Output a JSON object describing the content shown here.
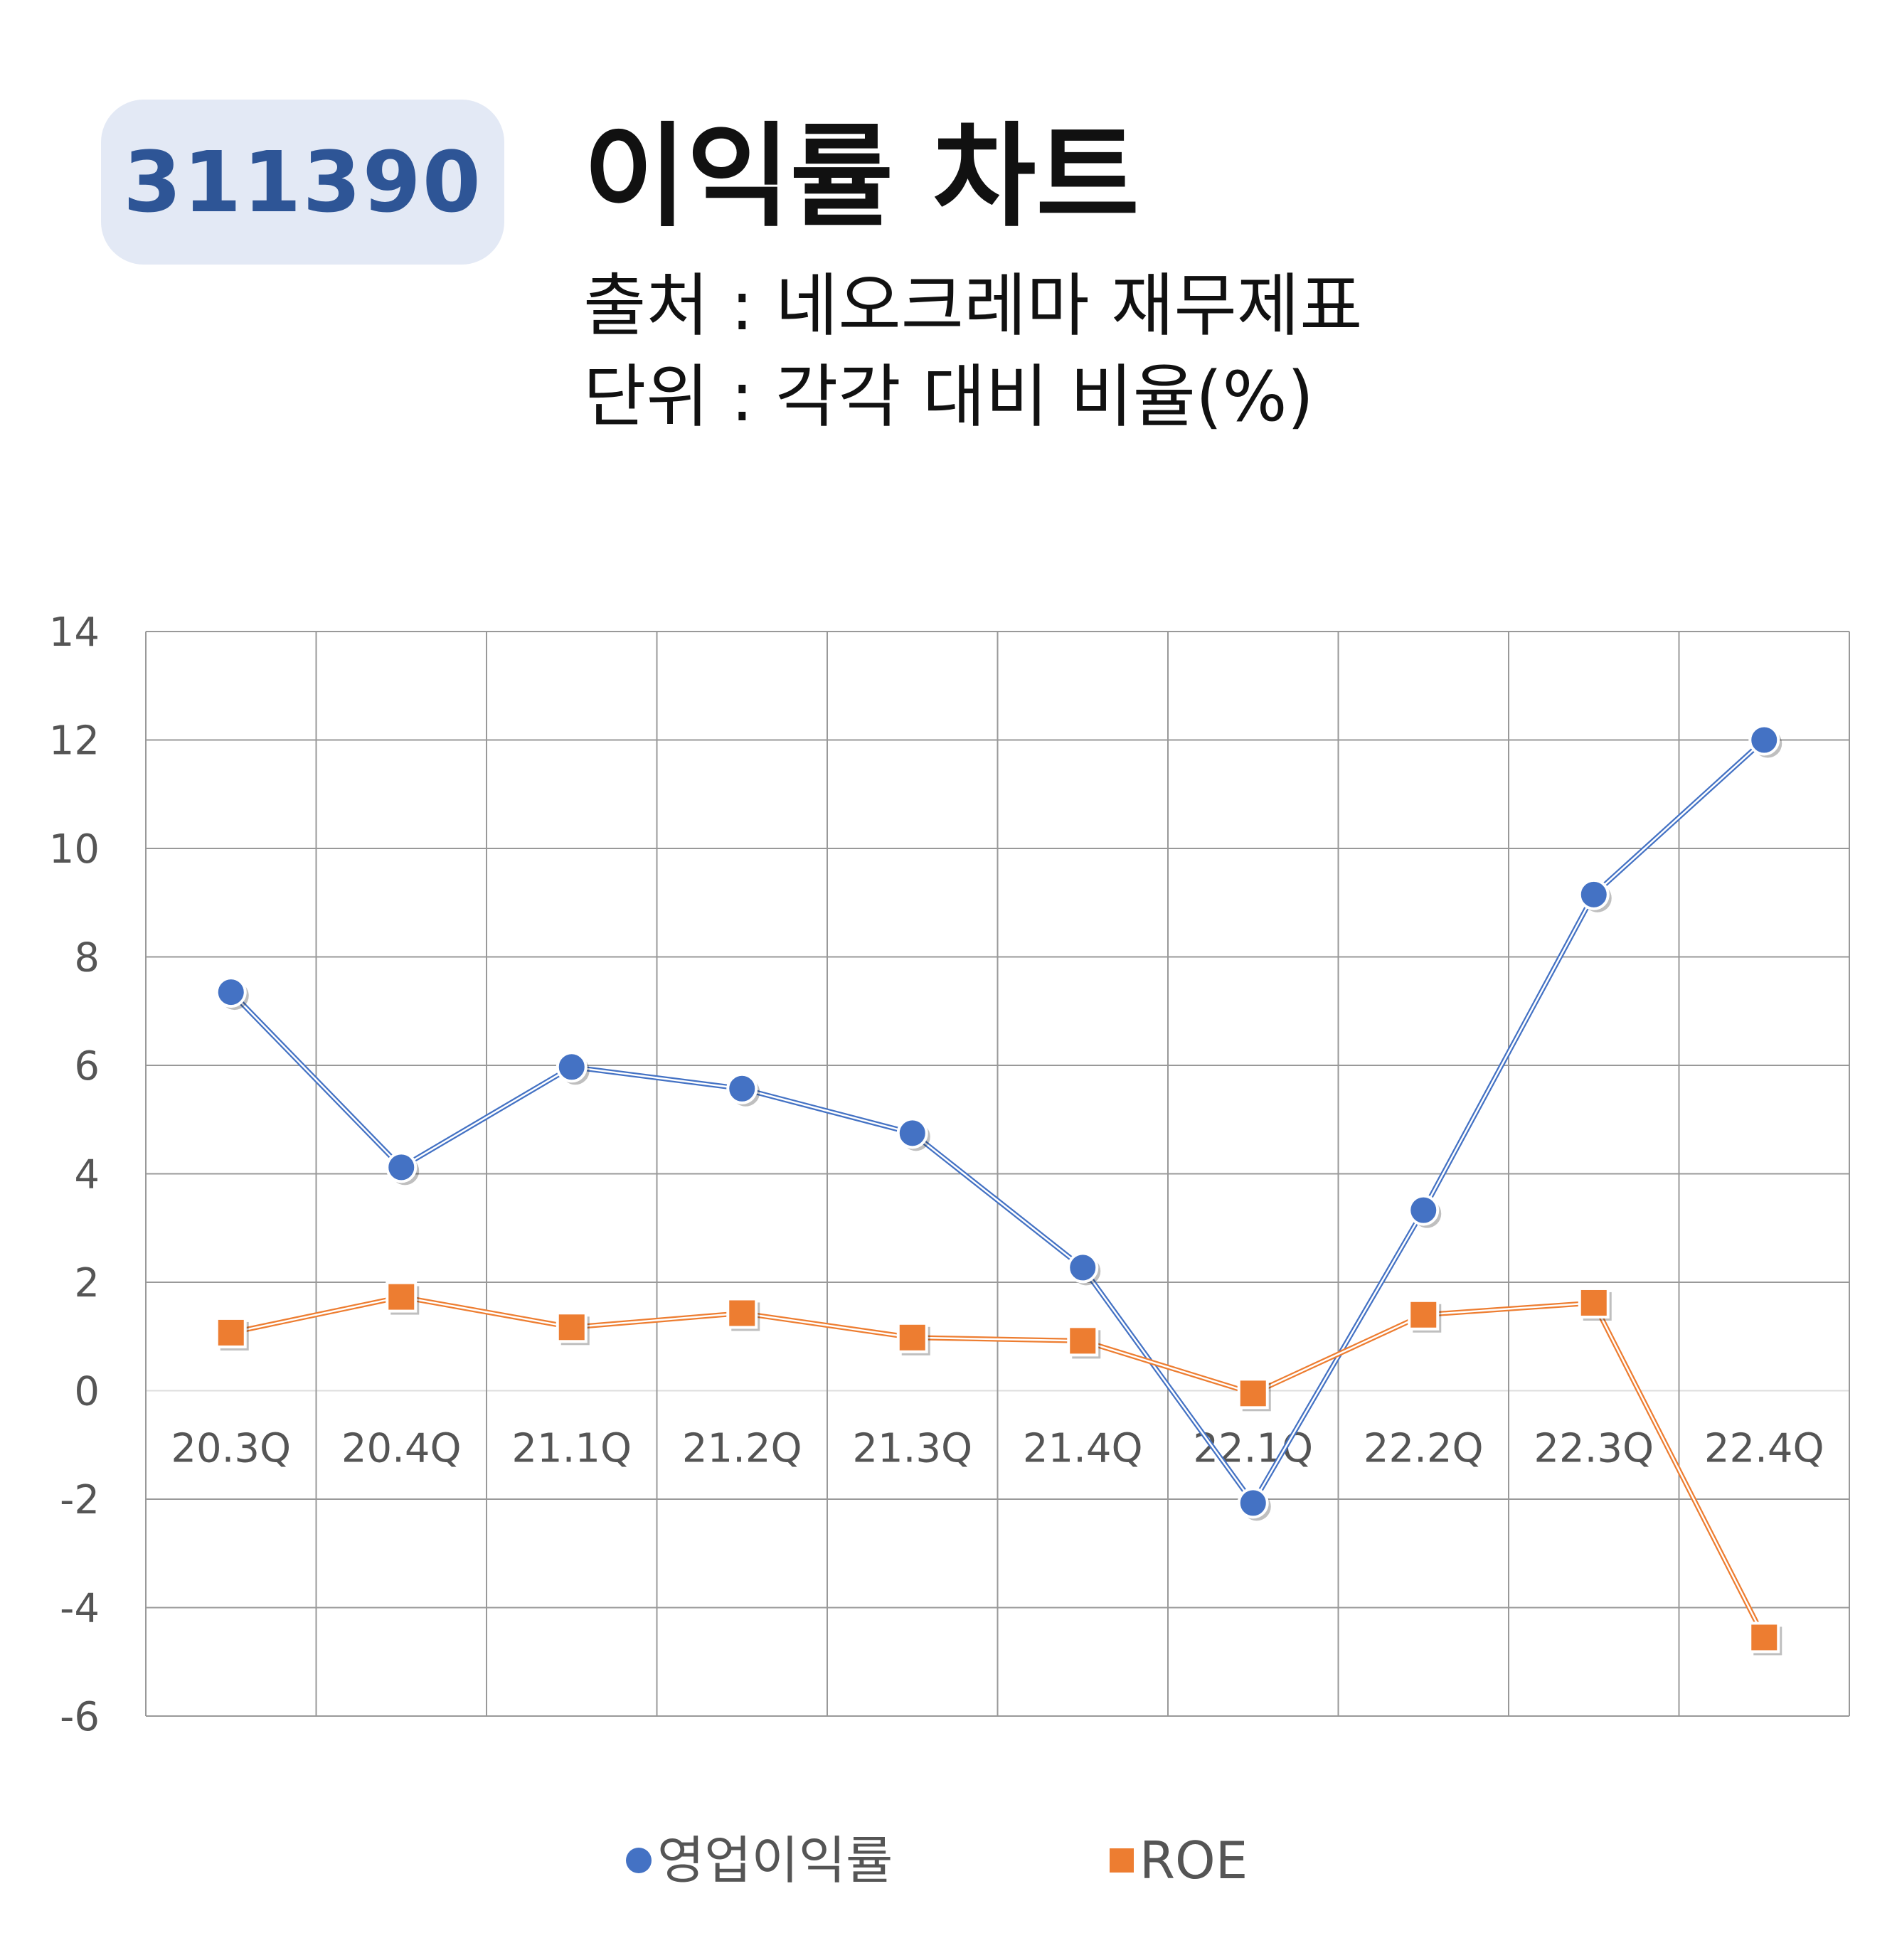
{
  "header": {
    "ticker": "311390",
    "title": "이익률 차트",
    "source": "출처 : 네오크레마 재무제표",
    "unit": "단위 : 각각 대비 비율(%)"
  },
  "colors": {
    "badge_bg": "#e3e9f5",
    "badge_text": "#2e5596",
    "series1": "#4472c4",
    "series2": "#ed7d31",
    "grid": "#999999"
  },
  "chart_data": {
    "type": "line",
    "categories": [
      "20.3Q",
      "20.4Q",
      "21.1Q",
      "21.2Q",
      "21.3Q",
      "21.4Q",
      "22.1Q",
      "22.2Q",
      "22.3Q",
      "22.4Q"
    ],
    "series": [
      {
        "name": "영업이익률",
        "color": "#4472c4",
        "marker": "circle",
        "values": [
          7.35,
          4.12,
          5.97,
          5.57,
          4.75,
          2.27,
          -2.07,
          3.33,
          9.15,
          12.0
        ]
      },
      {
        "name": "ROE",
        "color": "#ed7d31",
        "marker": "square",
        "values": [
          1.07,
          1.73,
          1.17,
          1.43,
          0.98,
          0.92,
          -0.05,
          1.4,
          1.62,
          -4.55
        ]
      }
    ],
    "ylim": [
      -6,
      14
    ],
    "yticks": [
      14,
      12,
      10,
      8,
      6,
      4,
      2,
      0,
      -2,
      -4,
      -6
    ],
    "grid": true,
    "legend": "bottom"
  }
}
